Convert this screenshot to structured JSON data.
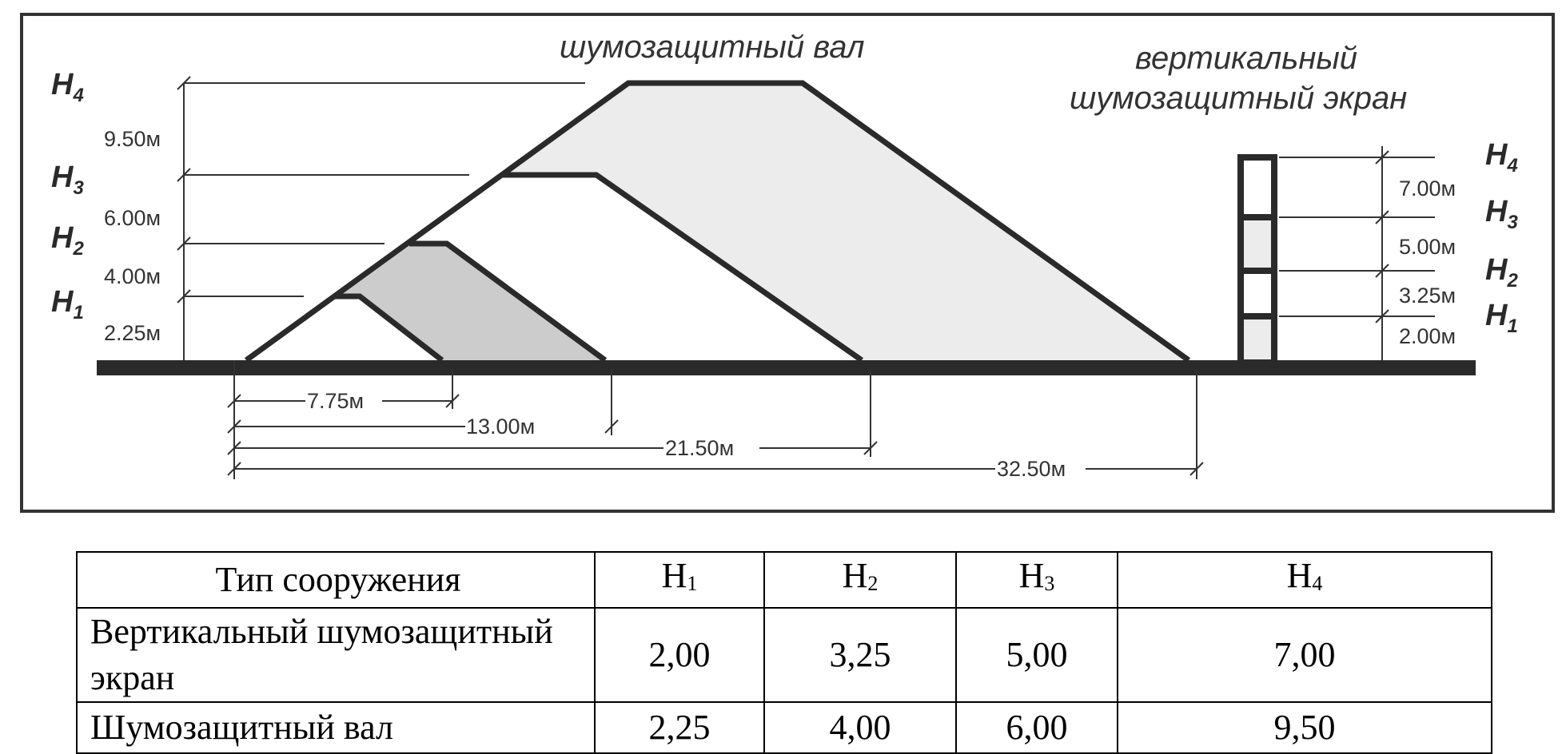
{
  "diagram": {
    "embankment_title": "шумозащитный вал",
    "screen_title_line1": "вертикальный",
    "screen_title_line2": "шумозащитный экран",
    "embankment_levels": [
      {
        "h": "H",
        "sub": "4",
        "dim": "9.50м"
      },
      {
        "h": "H",
        "sub": "3",
        "dim": "6.00м"
      },
      {
        "h": "H",
        "sub": "2",
        "dim": "4.00м"
      },
      {
        "h": "H",
        "sub": "1",
        "dim": "2.25м"
      }
    ],
    "screen_levels": [
      {
        "h": "H",
        "sub": "4",
        "dim": "7.00м"
      },
      {
        "h": "H",
        "sub": "3",
        "dim": "5.00м"
      },
      {
        "h": "H",
        "sub": "2",
        "dim": "3.25м"
      },
      {
        "h": "H",
        "sub": "1",
        "dim": "2.00м"
      }
    ],
    "base_widths": [
      "7.75м",
      "13.00м",
      "21.50м",
      "32.50м"
    ],
    "colors": {
      "frame": "#333333",
      "fill_large": "#ececec",
      "fill_small": "#cccccc"
    }
  },
  "table": {
    "header": {
      "type": "Тип сооружения",
      "h": [
        "H",
        "H",
        "H",
        "H"
      ],
      "sub": [
        "1",
        "2",
        "3",
        "4"
      ]
    },
    "rows": [
      {
        "type": "Вертикальный шумозащитный экран",
        "values": [
          "2,00",
          "3,25",
          "5,00",
          "7,00"
        ]
      },
      {
        "type": "Шумозащитный вал",
        "values": [
          "2,25",
          "4,00",
          "6,00",
          "9,50"
        ]
      }
    ]
  }
}
